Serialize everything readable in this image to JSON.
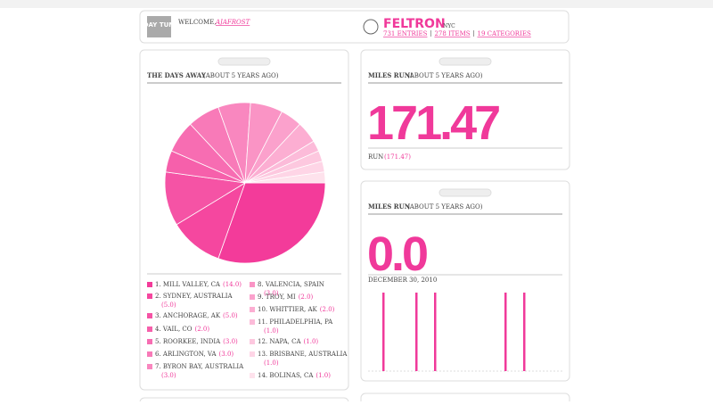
{
  "header": {
    "logo": "DAY TUM",
    "welcome": "WELCOME,",
    "user": "AJAFROST",
    "name": "FELTRON",
    "city": "NYC",
    "links": [
      "731 ENTRIES",
      "278 ITEMS",
      "19 CATEGORIES"
    ]
  },
  "days_away": {
    "title": "THE DAYS AWAY",
    "period": "(ABOUT 5 YEARS AGO)",
    "items": [
      {
        "label": "1. MILL VALLEY, CA",
        "value": 14,
        "value_label": "(14.0)",
        "color": "#f33b9a"
      },
      {
        "label": "2. SYDNEY, AUSTRALIA",
        "value": 5,
        "value_label": "(5.0)",
        "color": "#f5479f"
      },
      {
        "label": "3. ANCHORAGE, AK",
        "value": 5,
        "value_label": "(5.0)",
        "color": "#f553a5"
      },
      {
        "label": "4. VAIL, CO",
        "value": 2,
        "value_label": "(2.0)",
        "color": "#f660ab"
      },
      {
        "label": "5. ROORKEE, INDIA",
        "value": 3,
        "value_label": "(3.0)",
        "color": "#f76db2"
      },
      {
        "label": "6. ARLINGTON, VA",
        "value": 3,
        "value_label": "(3.0)",
        "color": "#f87ab8"
      },
      {
        "label": "7. BYRON BAY, AUSTRALIA",
        "value": 3,
        "value_label": "(3.0)",
        "color": "#f987bf"
      },
      {
        "label": "8. VALENCIA, SPAIN",
        "value": 3,
        "value_label": "(3.0)",
        "color": "#fa94c5"
      },
      {
        "label": "9. TROY, MI",
        "value": 2,
        "value_label": "(2.0)",
        "color": "#fba1cc"
      },
      {
        "label": "10. WHITTIER, AK",
        "value": 2,
        "value_label": "(2.0)",
        "color": "#fcaed2"
      },
      {
        "label": "11. PHILADELPHIA, PA",
        "value": 1,
        "value_label": "(1.0)",
        "color": "#fcbbd9"
      },
      {
        "label": "12. NAPA, CA",
        "value": 1,
        "value_label": "(1.0)",
        "color": "#fdc8df"
      },
      {
        "label": "13. BRISBANE, AUSTRALIA",
        "value": 1,
        "value_label": "(1.0)",
        "color": "#fed5e6"
      },
      {
        "label": "14. BOLINAS, CA",
        "value": 1,
        "value_label": "(1.0)",
        "color": "#fee2ec"
      }
    ]
  },
  "miles_run_total": {
    "title": "MILES RUN!",
    "period": "(ABOUT 5 YEARS AGO)",
    "value": "171.47",
    "footer": "RUN",
    "footer_value": "(171.47)"
  },
  "miles_run": {
    "title": "MILES RUN",
    "period": "(ABOUT 5 YEARS AGO)",
    "value": "0.0",
    "date": "DECEMBER 30, 2010",
    "bars": [
      1,
      1,
      1,
      1,
      1
    ]
  }
}
